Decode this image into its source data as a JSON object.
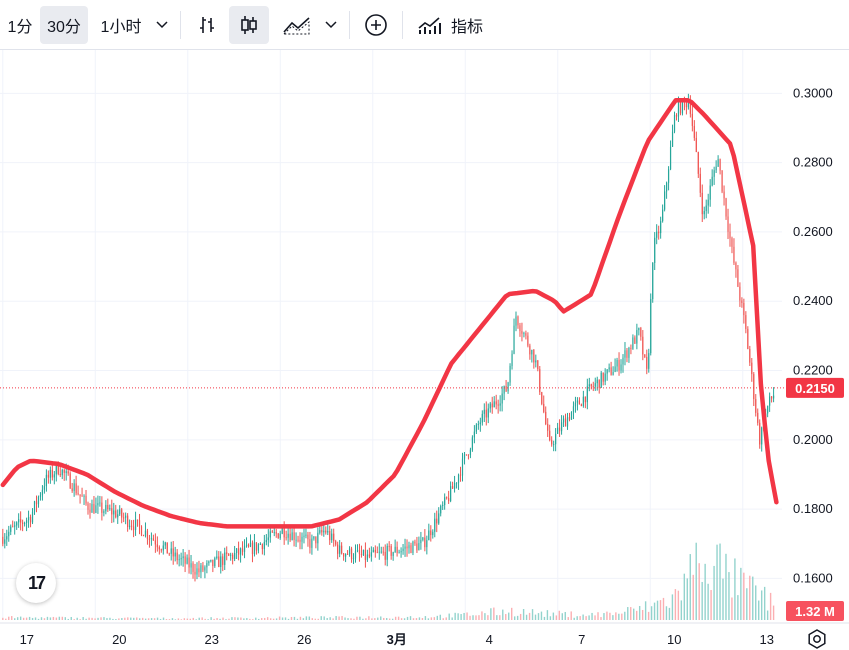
{
  "toolbar": {
    "interval_1m": "1分",
    "interval_30m": "30分",
    "interval_1h": "1小时",
    "indicators_label": "指标",
    "icons": [
      "chevron-down-icon",
      "bar-chart-icon",
      "candlestick-icon",
      "area-chart-icon",
      "chevron-down-icon",
      "plus-circle-icon",
      "indicators-icon"
    ]
  },
  "chart_data": {
    "type": "line",
    "x_tick_labels": [
      "17",
      "20",
      "23",
      "26",
      "3月",
      "4",
      "7",
      "10",
      "13"
    ],
    "y_tick_labels": [
      "0.3000",
      "0.2800",
      "0.2600",
      "0.2400",
      "0.2200",
      "0.2000",
      "0.1800",
      "0.1600"
    ],
    "ylim": [
      0.148,
      0.3125
    ],
    "grid": true,
    "price_series": {
      "color": "#26a69a",
      "down_color": "#ef5350",
      "t": [
        0,
        1,
        1.5,
        2,
        2.5,
        3,
        4,
        5,
        6,
        7,
        8,
        9,
        10,
        11,
        11.5,
        12,
        13,
        14,
        15,
        16,
        17,
        18,
        18.3,
        19,
        19.5,
        20,
        21,
        22,
        22.7,
        23,
        23.2,
        23.5,
        24,
        24.5,
        25,
        25.5,
        26,
        26.5,
        27,
        27.3,
        27.5
      ],
      "values": [
        0.172,
        0.178,
        0.188,
        0.192,
        0.187,
        0.181,
        0.179,
        0.174,
        0.167,
        0.162,
        0.166,
        0.169,
        0.174,
        0.17,
        0.174,
        0.168,
        0.166,
        0.168,
        0.17,
        0.185,
        0.205,
        0.215,
        0.236,
        0.223,
        0.198,
        0.205,
        0.215,
        0.222,
        0.231,
        0.218,
        0.255,
        0.263,
        0.295,
        0.298,
        0.264,
        0.282,
        0.255,
        0.232,
        0.2,
        0.21,
        0.213
      ]
    },
    "volume_series": {
      "color": "#80cbc4",
      "scale_max": 1.32,
      "unit": "M",
      "t": [
        0,
        3,
        6,
        9,
        12,
        15,
        16.5,
        18,
        19.5,
        21,
        22,
        23,
        24,
        25,
        26,
        27,
        27.5
      ],
      "values": [
        0.05,
        0.04,
        0.03,
        0.04,
        0.05,
        0.06,
        0.1,
        0.18,
        0.12,
        0.1,
        0.14,
        0.25,
        0.45,
        1.32,
        0.8,
        0.5,
        0.3
      ]
    },
    "overlay_line": {
      "color": "#f23645",
      "t": [
        0,
        0.5,
        1,
        2,
        3,
        4,
        5,
        6,
        7,
        8,
        9,
        10,
        11,
        12,
        13,
        14,
        15,
        16,
        17,
        18,
        19,
        19.7,
        20,
        21,
        22,
        23,
        24,
        24.5,
        25,
        26,
        26.8,
        27,
        27.3,
        27.6
      ],
      "values": [
        0.187,
        0.192,
        0.194,
        0.193,
        0.19,
        0.185,
        0.181,
        0.178,
        0.176,
        0.175,
        0.175,
        0.175,
        0.175,
        0.177,
        0.182,
        0.19,
        0.205,
        0.222,
        0.232,
        0.242,
        0.243,
        0.24,
        0.237,
        0.242,
        0.265,
        0.286,
        0.298,
        0.298,
        0.294,
        0.285,
        0.255,
        0.22,
        0.195,
        0.182
      ]
    },
    "current_price": 0.215,
    "current_price_label": "0.2150",
    "volume_label": "1.32 M"
  }
}
